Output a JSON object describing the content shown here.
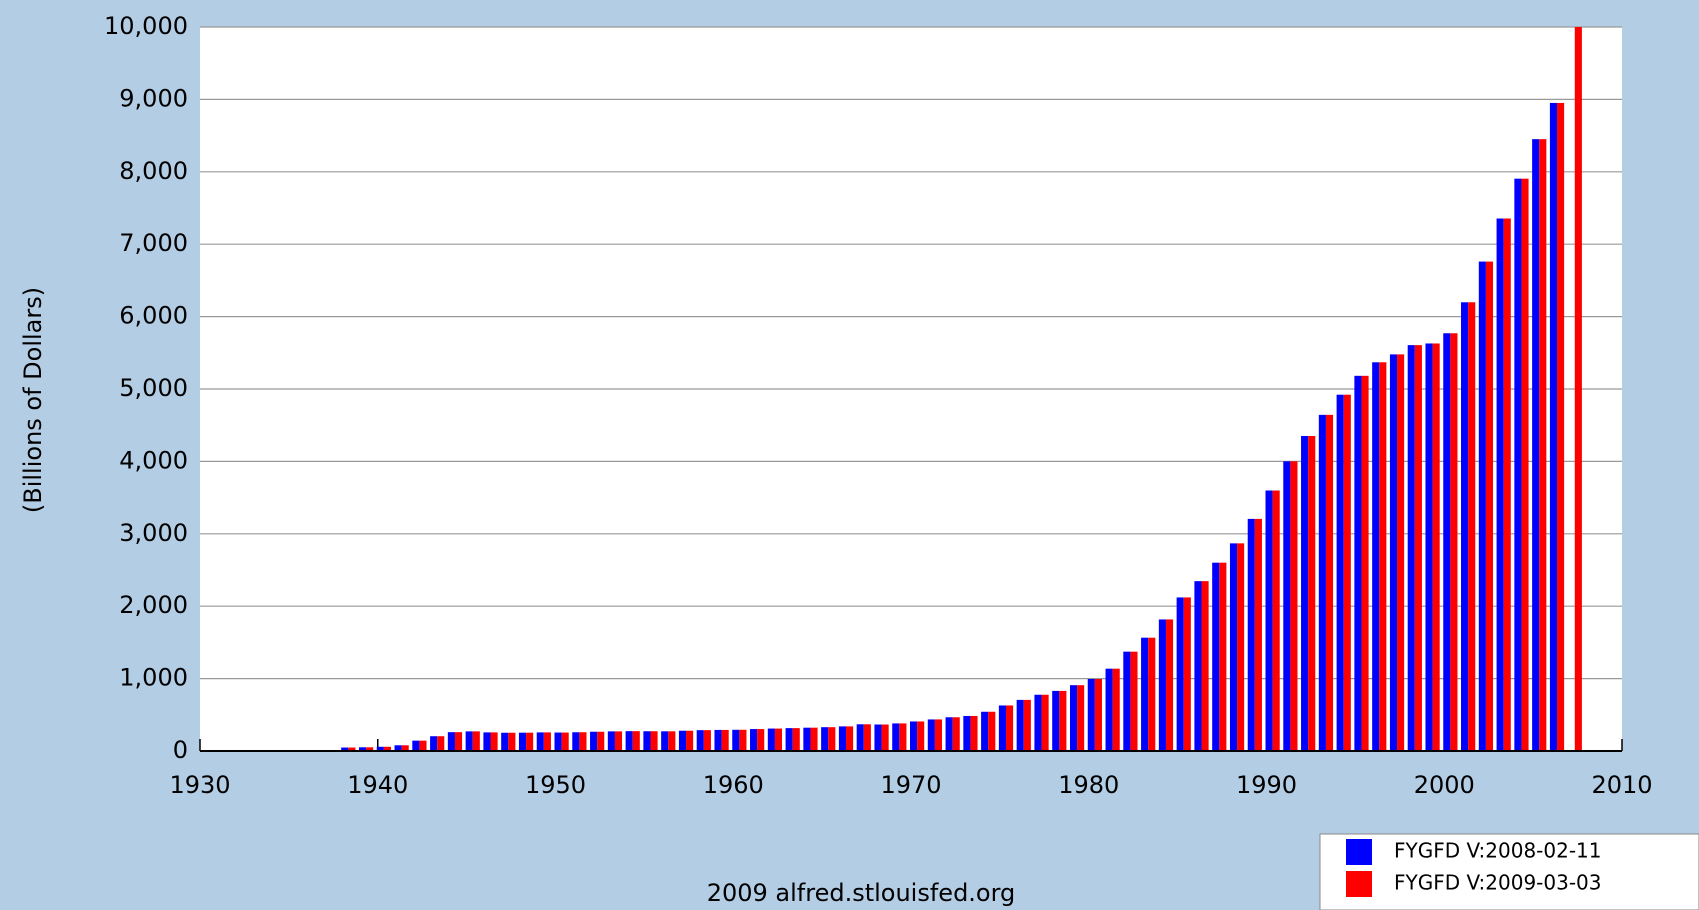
{
  "chart_data": {
    "type": "bar",
    "y_label": "(Billions of Dollars)",
    "source": "2009 alfred.stlouisfed.org",
    "x": [
      1938,
      1939,
      1940,
      1941,
      1942,
      1943,
      1944,
      1945,
      1946,
      1947,
      1948,
      1949,
      1950,
      1951,
      1952,
      1953,
      1954,
      1955,
      1956,
      1957,
      1958,
      1959,
      1960,
      1961,
      1962,
      1963,
      1964,
      1965,
      1966,
      1967,
      1968,
      1969,
      1970,
      1971,
      1972,
      1973,
      1974,
      1975,
      1976,
      1977,
      1978,
      1979,
      1980,
      1981,
      1982,
      1983,
      1984,
      1985,
      1986,
      1987,
      1988,
      1989,
      1990,
      1991,
      1992,
      1993,
      1994,
      1995,
      1996,
      1997,
      1998,
      1999,
      2000,
      2001,
      2002,
      2003,
      2004,
      2005,
      2006,
      2007
    ],
    "series": [
      {
        "name": "FYGFD V:2008-02-11",
        "color": "#0000ff",
        "values": [
          48,
          51,
          58,
          79,
          143,
          204,
          260,
          271,
          257,
          252,
          253,
          257,
          255,
          259,
          266,
          271,
          274,
          273,
          272,
          280,
          288,
          291,
          293,
          303,
          310,
          316,
          322,
          329,
          340,
          369,
          366,
          381,
          408,
          436,
          466,
          484,
          542,
          629,
          706,
          777,
          830,
          909,
          995,
          1137,
          1372,
          1565,
          1817,
          2121,
          2346,
          2601,
          2868,
          3206,
          3598,
          4002,
          4351,
          4643,
          4921,
          5182,
          5369,
          5478,
          5606,
          5629,
          5770,
          6198,
          6760,
          7355,
          7905,
          8451,
          8951,
          null
        ]
      },
      {
        "name": "FYGFD V:2009-03-03",
        "color": "#ff0000",
        "values": [
          48,
          51,
          58,
          79,
          143,
          204,
          260,
          271,
          257,
          252,
          253,
          257,
          255,
          259,
          266,
          271,
          274,
          273,
          272,
          280,
          288,
          291,
          293,
          303,
          310,
          316,
          322,
          329,
          340,
          369,
          366,
          381,
          408,
          436,
          466,
          484,
          542,
          629,
          706,
          777,
          830,
          909,
          995,
          1137,
          1372,
          1565,
          1817,
          2121,
          2346,
          2601,
          2868,
          3206,
          3598,
          4002,
          4351,
          4643,
          4921,
          5182,
          5369,
          5478,
          5606,
          5629,
          5770,
          6198,
          6760,
          7355,
          7905,
          8451,
          8951,
          10000
        ]
      }
    ],
    "xlim": [
      1930,
      2010
    ],
    "xticks": [
      1930,
      1940,
      1950,
      1960,
      1970,
      1980,
      1990,
      2000,
      2010
    ],
    "ylim": [
      0,
      10000
    ],
    "yticks": [
      0,
      {
        "value": 1000,
        "label": "1,000"
      },
      {
        "value": 2000,
        "label": "2,000"
      },
      {
        "value": 3000,
        "label": "3,000"
      },
      {
        "value": 4000,
        "label": "4,000"
      },
      {
        "value": 5000,
        "label": "5,000"
      },
      {
        "value": 6000,
        "label": "6,000"
      },
      {
        "value": 7000,
        "label": "7,000"
      },
      {
        "value": 8000,
        "label": "8,000"
      },
      {
        "value": 9000,
        "label": "9,000"
      },
      {
        "value": 10000,
        "label": "10,000"
      }
    ],
    "grid": true
  }
}
